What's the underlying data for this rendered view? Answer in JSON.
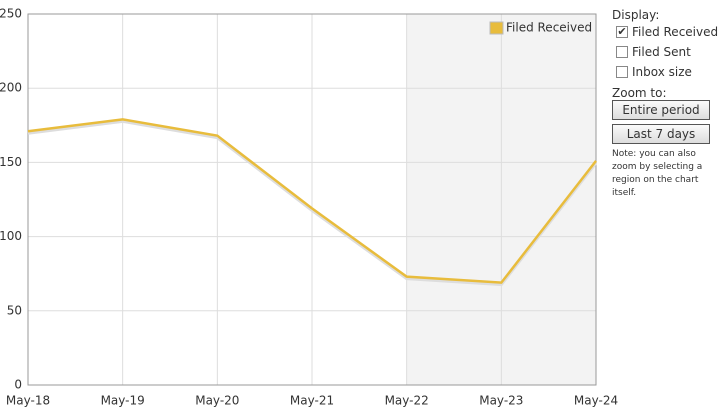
{
  "chart_data": {
    "type": "line",
    "categories": [
      "May-18",
      "May-19",
      "May-20",
      "May-21",
      "May-22",
      "May-23",
      "May-24"
    ],
    "series": [
      {
        "name": "Filed Received",
        "color": "#e8bc3c",
        "values": [
          171,
          179,
          168,
          119,
          73,
          69,
          151
        ]
      }
    ],
    "ylim": [
      0,
      250
    ],
    "yticks": [
      0,
      50,
      100,
      150,
      200,
      250
    ],
    "grid": true,
    "legend": "top-right",
    "highlight_range": [
      "May-22",
      "May-24"
    ]
  },
  "controls": {
    "display_title": "Display:",
    "checkboxes": [
      {
        "label": "Filed Received",
        "checked": true
      },
      {
        "label": "Filed Sent",
        "checked": false
      },
      {
        "label": "Inbox size",
        "checked": false
      }
    ],
    "zoom_title": "Zoom to:",
    "buttons": [
      "Entire period",
      "Last 7 days"
    ],
    "note": [
      "Note: you can also",
      "zoom by selecting a",
      "region on the chart itself."
    ]
  }
}
